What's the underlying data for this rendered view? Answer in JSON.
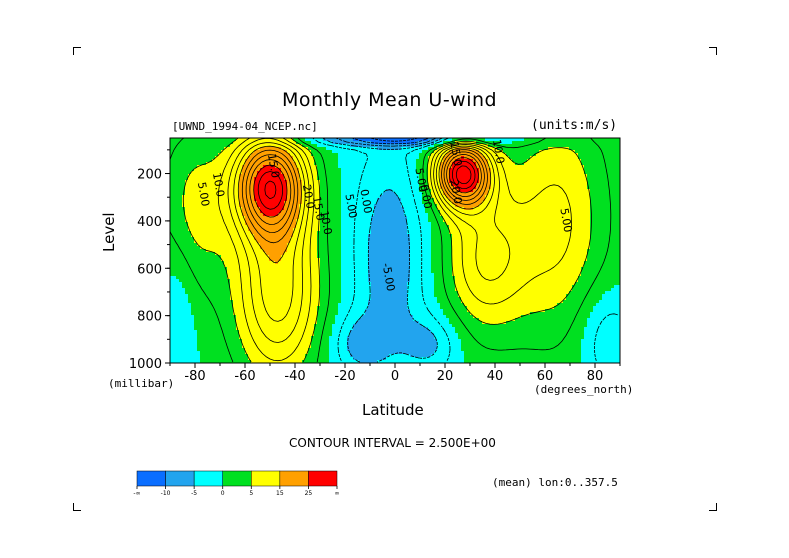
{
  "chart_data": {
    "type": "contour",
    "title": "Monthly Mean U-wind",
    "dataset": "[UWND_1994-04_NCEP.nc]",
    "units": "(units:m/s)",
    "xlabel": "Latitude",
    "xunit": "(degrees_north)",
    "ylabel": "Level",
    "yunit": "(millibar)",
    "xlim": [
      -90,
      90
    ],
    "ylim": [
      1000,
      50
    ],
    "y_inverted": true,
    "x_ticks": [
      -80,
      -60,
      -40,
      -20,
      0,
      20,
      40,
      60,
      80
    ],
    "y_ticks": [
      200,
      400,
      600,
      800,
      1000
    ],
    "contour_interval_text": "CONTOUR INTERVAL = 2.500E+00",
    "contour_interval": 2.5,
    "average_note": "(mean) lon:0..357.5",
    "jets": [
      {
        "lat": -50,
        "level": 250,
        "max": 27.5
      },
      {
        "lat": 27,
        "level": 200,
        "max": 30
      }
    ],
    "contour_labels": [
      {
        "text": "5.00",
        "lat": -78,
        "level": 290
      },
      {
        "text": "10.0",
        "lat": -72,
        "level": 250
      },
      {
        "text": "15.0",
        "lat": -50,
        "level": 170
      },
      {
        "text": "20.0",
        "lat": -36,
        "level": 300
      },
      {
        "text": "15.0",
        "lat": -32,
        "level": 350
      },
      {
        "text": "10.0",
        "lat": -29,
        "level": 410
      },
      {
        "text": "5.00",
        "lat": -19,
        "level": 340
      },
      {
        "text": "0.00",
        "lat": -13,
        "level": 320
      },
      {
        "text": "-5.00",
        "lat": -4,
        "level": 640
      },
      {
        "text": "5.00",
        "lat": 9,
        "level": 230
      },
      {
        "text": "0.00",
        "lat": 11,
        "level": 300
      },
      {
        "text": "15.0",
        "lat": 23,
        "level": 120
      },
      {
        "text": "10.0",
        "lat": 40,
        "level": 110
      },
      {
        "text": "20.0",
        "lat": 23,
        "level": 280
      },
      {
        "text": "5.00",
        "lat": 67,
        "level": 400
      }
    ],
    "colorbar": {
      "colors": [
        "#0a6eff",
        "#22a4ee",
        "#00ffff",
        "#00e020",
        "#ffff00",
        "#ffa000",
        "#ff0000"
      ],
      "labels": [
        "-∞",
        "-10",
        "-5",
        "0",
        "5",
        "15",
        "25",
        "∞"
      ]
    }
  }
}
